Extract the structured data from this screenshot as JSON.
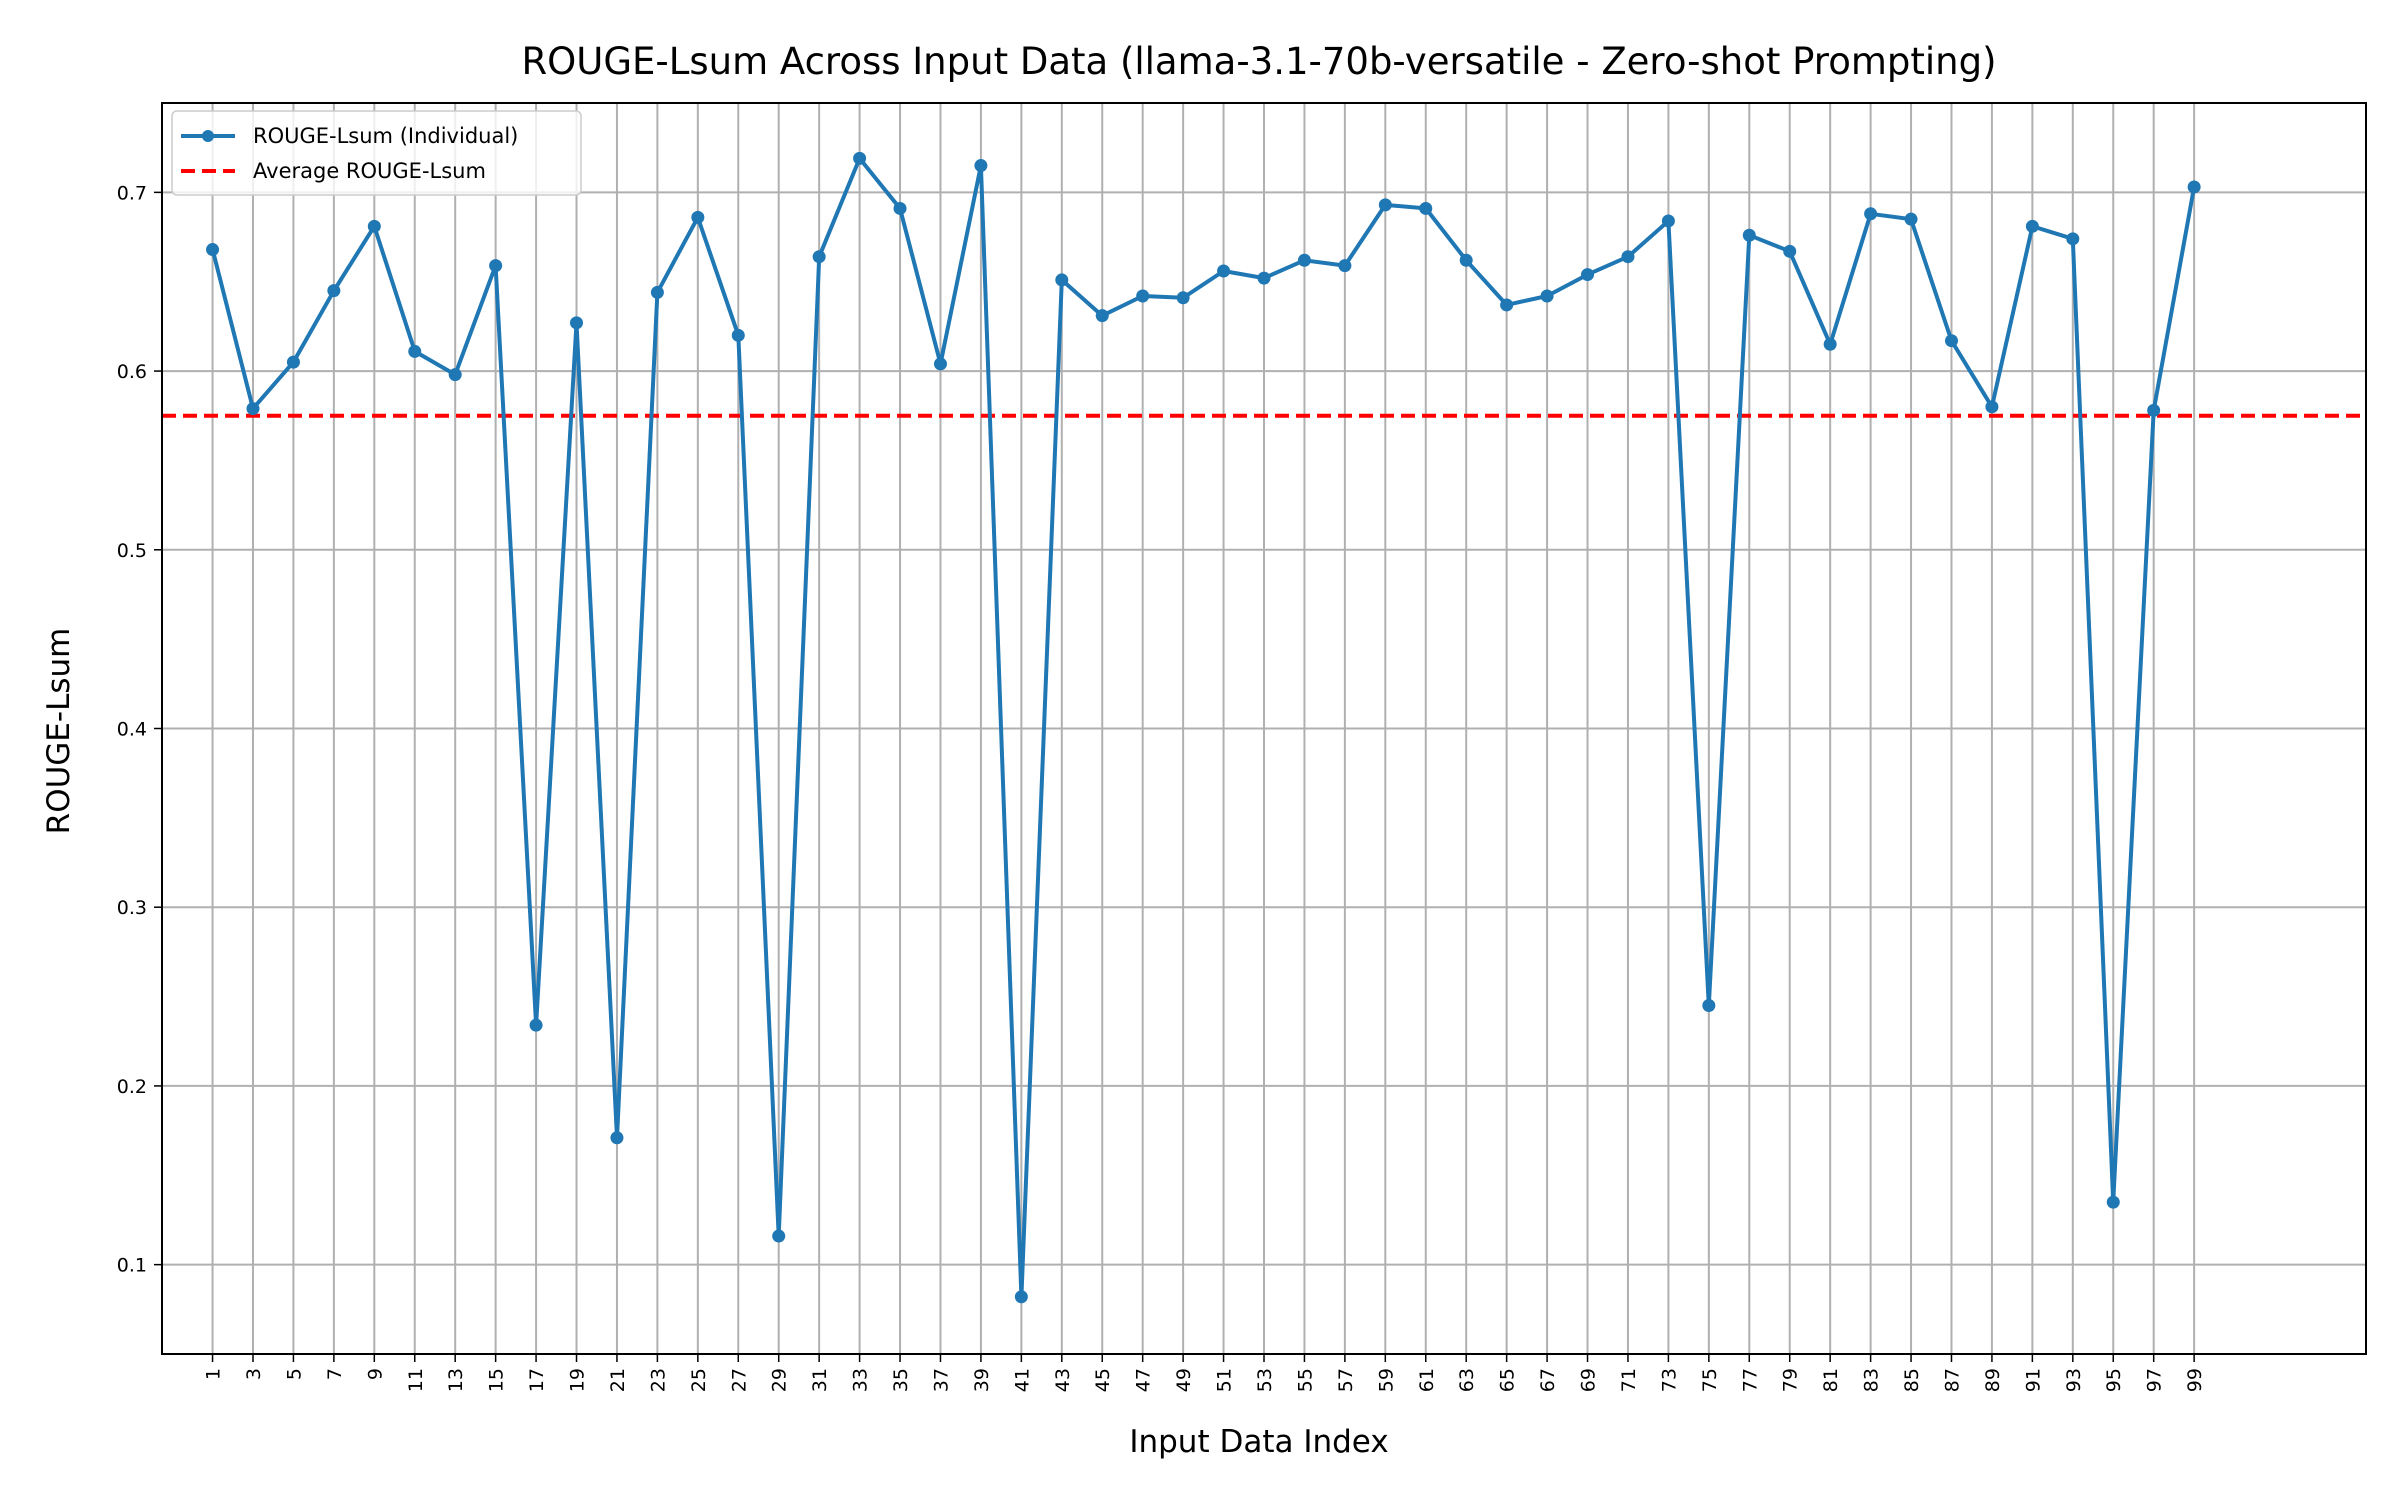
{
  "chart_data": {
    "type": "line",
    "title": "ROUGE-Lsum Across Input Data (llama-3.1-70b-versatile - Zero-shot Prompting)",
    "xlabel": "Input Data Index",
    "ylabel": "ROUGE-Lsum",
    "xlim": [
      -1.5,
      107.5
    ],
    "ylim": [
      0.05,
      0.75
    ],
    "x_ticks": [
      1,
      3,
      5,
      7,
      9,
      11,
      13,
      15,
      17,
      19,
      21,
      23,
      25,
      27,
      29,
      31,
      33,
      35,
      37,
      39,
      41,
      43,
      45,
      47,
      49,
      51,
      53,
      55,
      57,
      59,
      61,
      63,
      65,
      67,
      69,
      71,
      73,
      75,
      77,
      79,
      81,
      83,
      85,
      87,
      89,
      91,
      93,
      95,
      97,
      99
    ],
    "y_ticks": [
      0.1,
      0.2,
      0.3,
      0.4,
      0.5,
      0.6,
      0.7
    ],
    "grid": true,
    "legend_position": "upper left",
    "series": [
      {
        "name": "ROUGE-Lsum (Individual)",
        "color": "#1f77b4",
        "style": "solid-markers",
        "x": [
          1,
          3,
          5,
          7,
          9,
          11,
          13,
          15,
          17,
          19,
          21,
          23,
          25,
          27,
          29,
          31,
          33,
          35,
          37,
          39,
          41,
          43,
          45,
          47,
          49,
          51,
          53,
          55,
          57,
          59,
          61,
          63,
          65,
          67,
          69,
          71,
          73,
          75,
          77,
          79,
          81,
          83,
          85,
          87,
          89,
          91,
          93,
          95,
          97,
          99
        ],
        "values": [
          0.668,
          0.579,
          0.605,
          0.645,
          0.681,
          0.611,
          0.598,
          0.659,
          0.234,
          0.627,
          0.171,
          0.644,
          0.686,
          0.62,
          0.116,
          0.664,
          0.719,
          0.691,
          0.604,
          0.715,
          0.082,
          0.651,
          0.631,
          0.642,
          0.641,
          0.656,
          0.652,
          0.662,
          0.659,
          0.693,
          0.691,
          0.662,
          0.637,
          0.642,
          0.654,
          0.664,
          0.684,
          0.245,
          0.676,
          0.667,
          0.615,
          0.688,
          0.685,
          0.617,
          0.58,
          0.681,
          0.674,
          0.135,
          0.578,
          0.703
        ]
      },
      {
        "name": "Average ROUGE-Lsum",
        "color": "#ff0000",
        "style": "dashed",
        "value": 0.575
      }
    ]
  }
}
